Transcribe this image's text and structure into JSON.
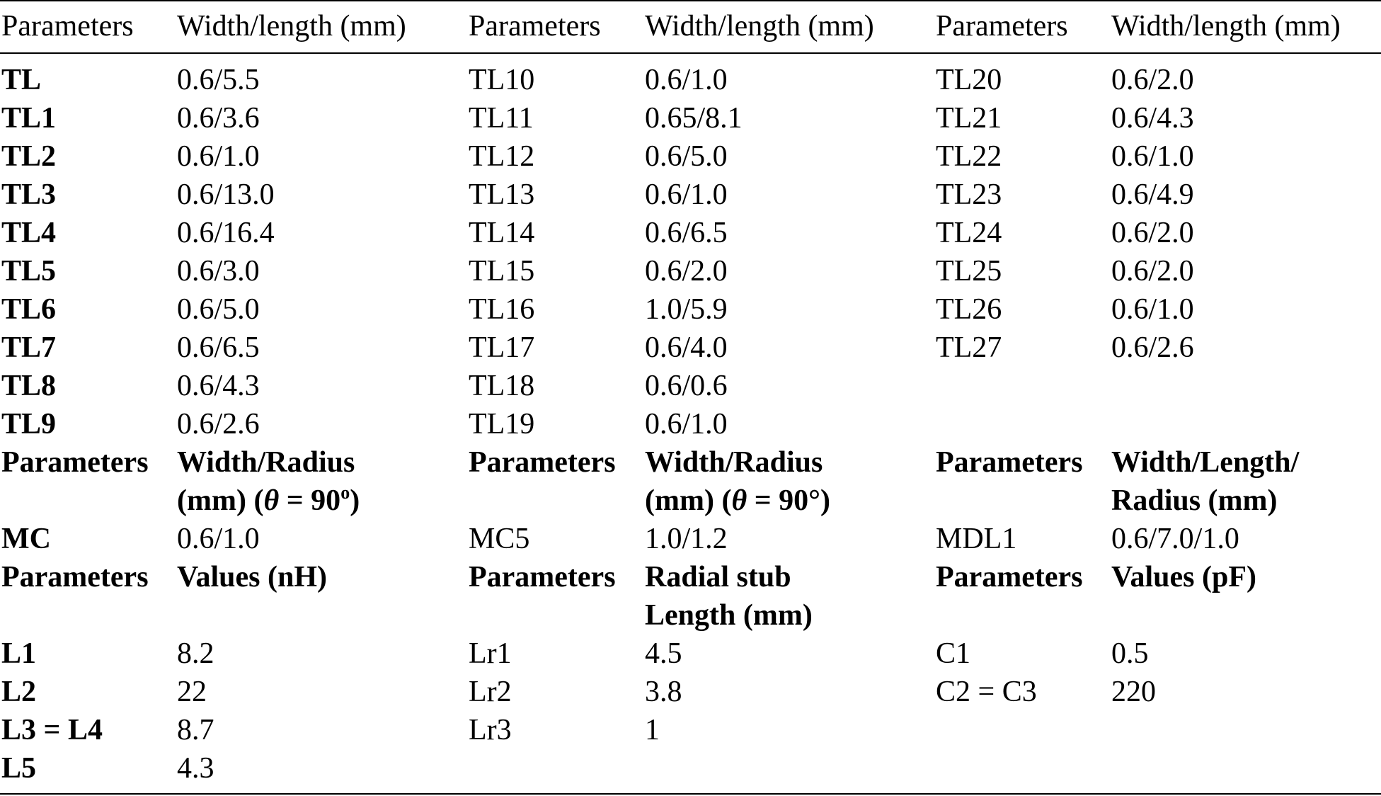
{
  "header": {
    "col1": "Parameters",
    "col2": "Width/length (mm)",
    "col3": "Parameters",
    "col4": "Width/length (mm)",
    "col5": "Parameters",
    "col6": "Width/length (mm)"
  },
  "tl_rows": [
    {
      "p1": "TL",
      "v1": "0.6/5.5",
      "p2": "TL10",
      "v2": "0.6/1.0",
      "p3": "TL20",
      "v3": "0.6/2.0"
    },
    {
      "p1": "TL1",
      "v1": "0.6/3.6",
      "p2": "TL11",
      "v2": "0.65/8.1",
      "p3": "TL21",
      "v3": "0.6/4.3"
    },
    {
      "p1": "TL2",
      "v1": "0.6/1.0",
      "p2": "TL12",
      "v2": "0.6/5.0",
      "p3": "TL22",
      "v3": "0.6/1.0"
    },
    {
      "p1": "TL3",
      "v1": "0.6/13.0",
      "p2": "TL13",
      "v2": "0.6/1.0",
      "p3": "TL23",
      "v3": "0.6/4.9"
    },
    {
      "p1": "TL4",
      "v1": "0.6/16.4",
      "p2": "TL14",
      "v2": "0.6/6.5",
      "p3": "TL24",
      "v3": "0.6/2.0"
    },
    {
      "p1": "TL5",
      "v1": "0.6/3.0",
      "p2": "TL15",
      "v2": "0.6/2.0",
      "p3": "TL25",
      "v3": "0.6/2.0"
    },
    {
      "p1": "TL6",
      "v1": "0.6/5.0",
      "p2": "TL16",
      "v2": "1.0/5.9",
      "p3": "TL26",
      "v3": "0.6/1.0"
    },
    {
      "p1": "TL7",
      "v1": "0.6/6.5",
      "p2": "TL17",
      "v2": "0.6/4.0",
      "p3": "TL27",
      "v3": "0.6/2.6"
    },
    {
      "p1": "TL8",
      "v1": "0.6/4.3",
      "p2": "TL18",
      "v2": "0.6/0.6",
      "p3": "",
      "v3": ""
    },
    {
      "p1": "TL9",
      "v1": "0.6/2.6",
      "p2": "TL19",
      "v2": "0.6/1.0",
      "p3": "",
      "v3": ""
    }
  ],
  "mc_header": {
    "p1": "Parameters",
    "v1_line1": "Width/Radius",
    "v1_line2_a": "(mm)  (",
    "v1_theta": "θ",
    "v1_line2_b": " = 90",
    "v1_sup": "o",
    "v1_line2_c": ")",
    "p2": "Parameters",
    "v2_line1": "Width/Radius",
    "v2_line2_a": "(mm)  (",
    "v2_theta": "θ",
    "v2_line2_b": " = 90°)",
    "p3": "Parameters",
    "v3_line1": "Width/Length/",
    "v3_line2": "Radius (mm)"
  },
  "mc_row": {
    "p1": "MC",
    "v1": "0.6/1.0",
    "p2": "MC5",
    "v2": "1.0/1.2",
    "p3": "MDL1",
    "v3": "0.6/7.0/1.0"
  },
  "l_header": {
    "p1": "Parameters",
    "v1": "Values (nH)",
    "p2": "Parameters",
    "v2_line1": "Radial stub",
    "v2_line2": "Length (mm)",
    "p3": "Parameters",
    "v3": "Values (pF)"
  },
  "l_rows": [
    {
      "p1": "L1",
      "v1": "8.2",
      "p2": "Lr1",
      "v2": "4.5",
      "p3": "C1",
      "v3": "0.5"
    },
    {
      "p1": "L2",
      "v1": "22",
      "p2": "Lr2",
      "v2": "3.8",
      "p3": "C2 = C3",
      "v3": "220"
    },
    {
      "p1": "L3 = L4",
      "v1": "8.7",
      "p2": "Lr3",
      "v2": "1",
      "p3": "",
      "v3": ""
    },
    {
      "p1": "L5",
      "v1": "4.3",
      "p2": "",
      "v2": "",
      "p3": "",
      "v3": ""
    }
  ]
}
